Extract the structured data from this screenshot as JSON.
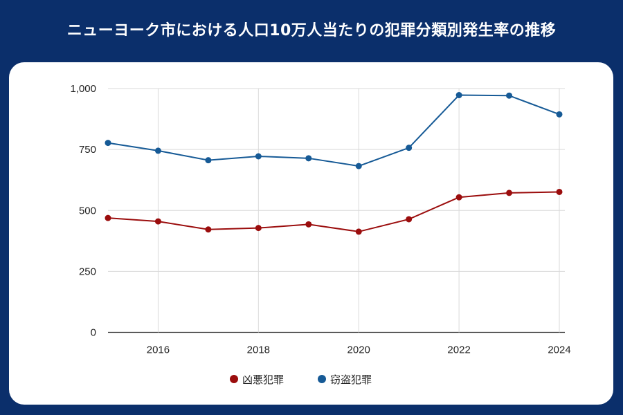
{
  "title": "ニューヨーク市における人口10万人当たりの犯罪分類別発生率の推移",
  "colors": {
    "background": "#0b2f6b",
    "violent": "#9b0d0d",
    "theft": "#165a96"
  },
  "chart_data": {
    "type": "line",
    "title": "ニューヨーク市における人口10万人当たりの犯罪分類別発生率の推移",
    "x": [
      2015,
      2016,
      2017,
      2018,
      2019,
      2020,
      2021,
      2022,
      2023,
      2024
    ],
    "xticks": [
      "2016",
      "2018",
      "2020",
      "2022",
      "2024"
    ],
    "yticks": [
      "0",
      "250",
      "500",
      "750",
      "1,000"
    ],
    "ylim": [
      0,
      1000
    ],
    "xlim": [
      2015,
      2024
    ],
    "grid": true,
    "legend": "bottom",
    "series": [
      {
        "name": "凶悪犯罪",
        "color": "#9b0d0d",
        "values": [
          469,
          455,
          422,
          428,
          443,
          413,
          464,
          554,
          572,
          576
        ]
      },
      {
        "name": "窃盗犯罪",
        "color": "#165a96",
        "values": [
          777,
          745,
          706,
          722,
          714,
          682,
          757,
          973,
          971,
          894
        ]
      }
    ]
  }
}
